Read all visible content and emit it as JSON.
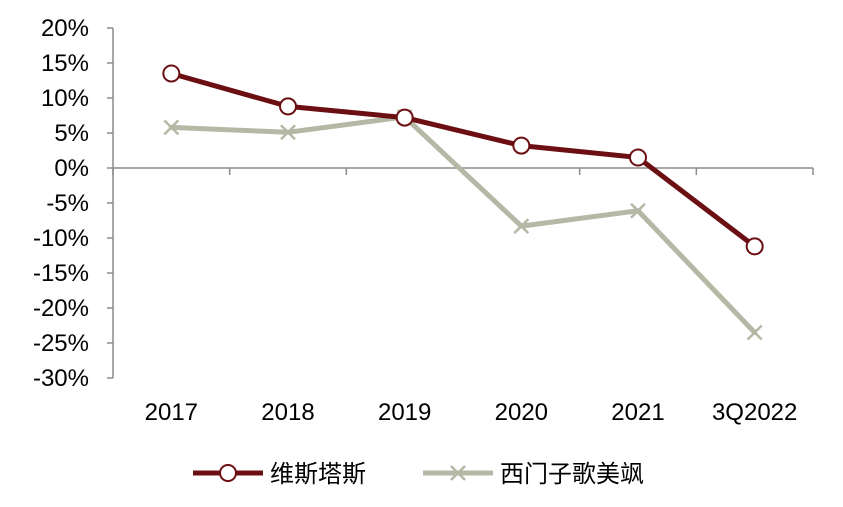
{
  "chart_data": {
    "type": "line",
    "title": "",
    "xlabel": "",
    "ylabel": "",
    "categories": [
      "2017",
      "2018",
      "2019",
      "2020",
      "2021",
      "3Q2022"
    ],
    "y_ticks": [
      "20%",
      "15%",
      "10%",
      "5%",
      "0%",
      "-5%",
      "-10%",
      "-15%",
      "-20%",
      "-25%",
      "-30%"
    ],
    "ylim": [
      -30,
      20
    ],
    "y_unit": "%",
    "grid": false,
    "legend_position": "bottom",
    "series": [
      {
        "name": "维斯塔斯",
        "values": [
          13.5,
          8.8,
          7.2,
          3.2,
          1.5,
          -11.2
        ],
        "color": "#6b0f12",
        "marker": "circle"
      },
      {
        "name": "西门子歌美飒",
        "values": [
          5.8,
          5.1,
          7.3,
          -8.3,
          -6.1,
          -23.5
        ],
        "color": "#b5b8a5",
        "marker": "x"
      }
    ]
  }
}
